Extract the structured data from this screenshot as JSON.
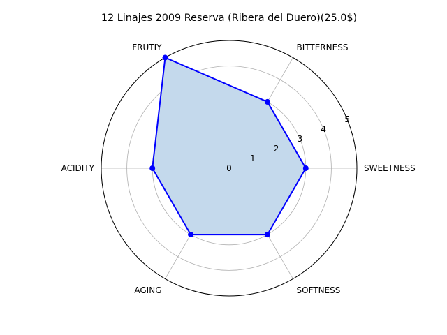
{
  "chart_data": {
    "type": "radar",
    "title": "12 Linajes 2009 Reserva  (Ribera del Duero)(25.0$)",
    "categories": [
      "SWEETNESS",
      "BITTERNESS",
      "FRUTIY",
      "ACIDITY",
      "AGING",
      "SOFTNESS"
    ],
    "r_ticks": [
      "0",
      "1",
      "2",
      "3",
      "4",
      "5"
    ],
    "rlim": [
      0,
      5
    ],
    "grid": true,
    "series": [
      {
        "values": [
          3,
          3,
          5,
          3,
          3,
          3
        ]
      }
    ],
    "colors": {
      "line": "#0000ff",
      "fill": "#c4d9ec",
      "grid": "#b0b0b0"
    }
  }
}
